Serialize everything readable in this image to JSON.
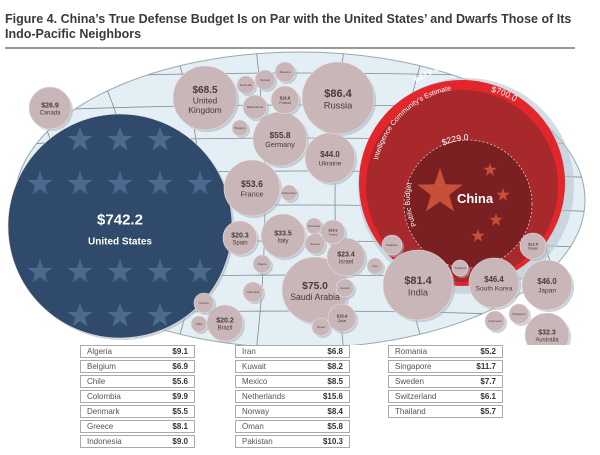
{
  "title": "Figure 4. China’s True Defense Budget Is on Par with the United States’ and Dwarfs Those of Its Indo-Pacific Neighbors",
  "chart_data": {
    "type": "bubble",
    "unit": "$ billions",
    "colors": {
      "us": "#2f4a6b",
      "china_outer": "#e2262b",
      "china_mid": "#a8292c",
      "china_inner": "#7a1f22",
      "country": "#c9b6b9",
      "map": "#e3eef5"
    },
    "china": {
      "name": "China",
      "aei_label": "AEI’s Estimate",
      "aei_value": "$710.6",
      "ic_label": "Intelligence Community’s Estimate",
      "ic_value": "$700.0",
      "public_label": "Public Budget",
      "public_value": "$229.0"
    },
    "countries": [
      {
        "name": "United States",
        "value": "$742.2"
      },
      {
        "name": "Canada",
        "value": "$26.9"
      },
      {
        "name": "United Kingdom",
        "value": "$68.5"
      },
      {
        "name": "Russia",
        "value": "$86.4"
      },
      {
        "name": "Germany",
        "value": "$55.8"
      },
      {
        "name": "Ukraine",
        "value": "$44.0"
      },
      {
        "name": "France",
        "value": "$53.6"
      },
      {
        "name": "Spain",
        "value": "$20.3"
      },
      {
        "name": "Italy",
        "value": "$33.5"
      },
      {
        "name": "Saudi Arabia",
        "value": "$75.0"
      },
      {
        "name": "Israel",
        "value": "$23.4"
      },
      {
        "name": "India",
        "value": "$81.4"
      },
      {
        "name": "South Korea",
        "value": "$46.4"
      },
      {
        "name": "Japan",
        "value": "$46.0"
      },
      {
        "name": "Australia",
        "value": "$32.3"
      },
      {
        "name": "Taiwan",
        "value": "$12.5"
      },
      {
        "name": "Brazil",
        "value": "$20.2"
      },
      {
        "name": "Turkey",
        "value": "$10.6"
      },
      {
        "name": "Qatar",
        "value": "$15.4"
      },
      {
        "name": "Poland",
        "value": "$16.6"
      },
      {
        "name": "Denmark",
        "value": ""
      },
      {
        "name": "Norway",
        "value": ""
      },
      {
        "name": "Sweden",
        "value": ""
      },
      {
        "name": "Netherlands",
        "value": ""
      },
      {
        "name": "Belgium",
        "value": ""
      },
      {
        "name": "Switzerland",
        "value": ""
      },
      {
        "name": "Greece",
        "value": ""
      },
      {
        "name": "Algeria",
        "value": ""
      },
      {
        "name": "Iran",
        "value": ""
      },
      {
        "name": "Pakistan",
        "value": ""
      },
      {
        "name": "Romania",
        "value": ""
      },
      {
        "name": "Kuwait",
        "value": ""
      },
      {
        "name": "Oman",
        "value": ""
      },
      {
        "name": "Colombia",
        "value": ""
      },
      {
        "name": "Mexico",
        "value": ""
      },
      {
        "name": "Chile",
        "value": ""
      },
      {
        "name": "Thailand",
        "value": ""
      },
      {
        "name": "Indonesia",
        "value": ""
      },
      {
        "name": "Singapore",
        "value": ""
      }
    ],
    "table": [
      [
        [
          "Algeria",
          "$9.1"
        ],
        [
          "Belgium",
          "$6.9"
        ],
        [
          "Chile",
          "$5.6"
        ],
        [
          "Colombia",
          "$9.9"
        ],
        [
          "Denmark",
          "$5.5"
        ],
        [
          "Greece",
          "$8.1"
        ],
        [
          "Indonesia",
          "$9.0"
        ]
      ],
      [
        [
          "Iran",
          "$6.8"
        ],
        [
          "Kuwait",
          "$8.2"
        ],
        [
          "Mexico",
          "$8.5"
        ],
        [
          "Netherlands",
          "$15.6"
        ],
        [
          "Norway",
          "$8.4"
        ],
        [
          "Oman",
          "$5.8"
        ],
        [
          "Pakistan",
          "$10.3"
        ]
      ],
      [
        [
          "Romania",
          "$5.2"
        ],
        [
          "Singapore",
          "$11.7"
        ],
        [
          "Sweden",
          "$7.7"
        ],
        [
          "Switzerland",
          "$6.1"
        ],
        [
          "Thailand",
          "$5.7"
        ]
      ]
    ]
  }
}
